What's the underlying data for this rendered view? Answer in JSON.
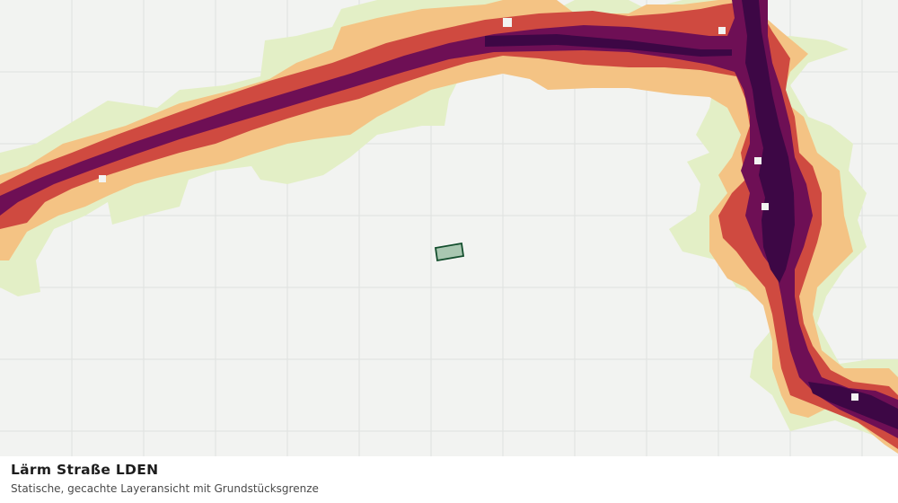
{
  "map": {
    "layer": "noise-road-lden",
    "grid": true,
    "colors": {
      "background": "#f2f3f1",
      "grid": "#dfe1df",
      "band_lightest": "#e3efc6",
      "band_light": "#f4c384",
      "band_medium": "#cf4a40",
      "band_dark": "#6e0f55",
      "band_darkest": "#3d0745",
      "parcel_fill": "#a9c7b1",
      "parcel_stroke": "#134e2d"
    }
  },
  "caption": {
    "title": "Lärm Straße LDEN",
    "subtitle": "Statische, gecachte Layeransicht mit Grundstücksgrenze"
  }
}
